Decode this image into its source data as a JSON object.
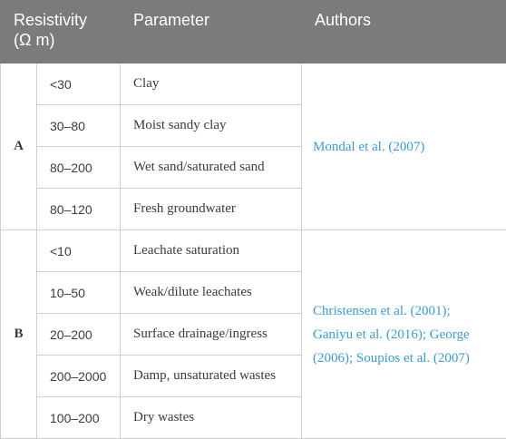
{
  "header": {
    "resistivity_line1": "Resistivity",
    "resistivity_line2": "(Ω m)",
    "parameter": "Parameter",
    "authors": "Authors"
  },
  "groups": [
    {
      "label": "A",
      "rows": [
        {
          "resistivity": "<30",
          "parameter": "Clay"
        },
        {
          "resistivity": "30–80",
          "parameter": "Moist sandy clay"
        },
        {
          "resistivity": "80–200",
          "parameter": "Wet sand/saturated sand"
        },
        {
          "resistivity": "80–120",
          "parameter": "Fresh groundwater"
        }
      ],
      "authors_lines": [
        "Mondal et al. (2007)"
      ]
    },
    {
      "label": "B",
      "rows": [
        {
          "resistivity": "<10",
          "parameter": "Leachate saturation"
        },
        {
          "resistivity": "10–50",
          "parameter": "Weak/dilute leachates"
        },
        {
          "resistivity": "20–200",
          "parameter": "Surface drainage/ingress"
        },
        {
          "resistivity": "200–2000",
          "parameter": "Damp, unsaturated wastes"
        },
        {
          "resistivity": "100–200",
          "parameter": "Dry wastes"
        }
      ],
      "authors_lines": [
        "Christensen et al. (2001);",
        "Ganiyu et al. (2016); George",
        "(2006); Soupios et al. (2007)"
      ]
    }
  ],
  "colors": {
    "header_bg": "#7b7b7b",
    "author_link": "#3a9ccd",
    "border": "#cfcfcf"
  }
}
